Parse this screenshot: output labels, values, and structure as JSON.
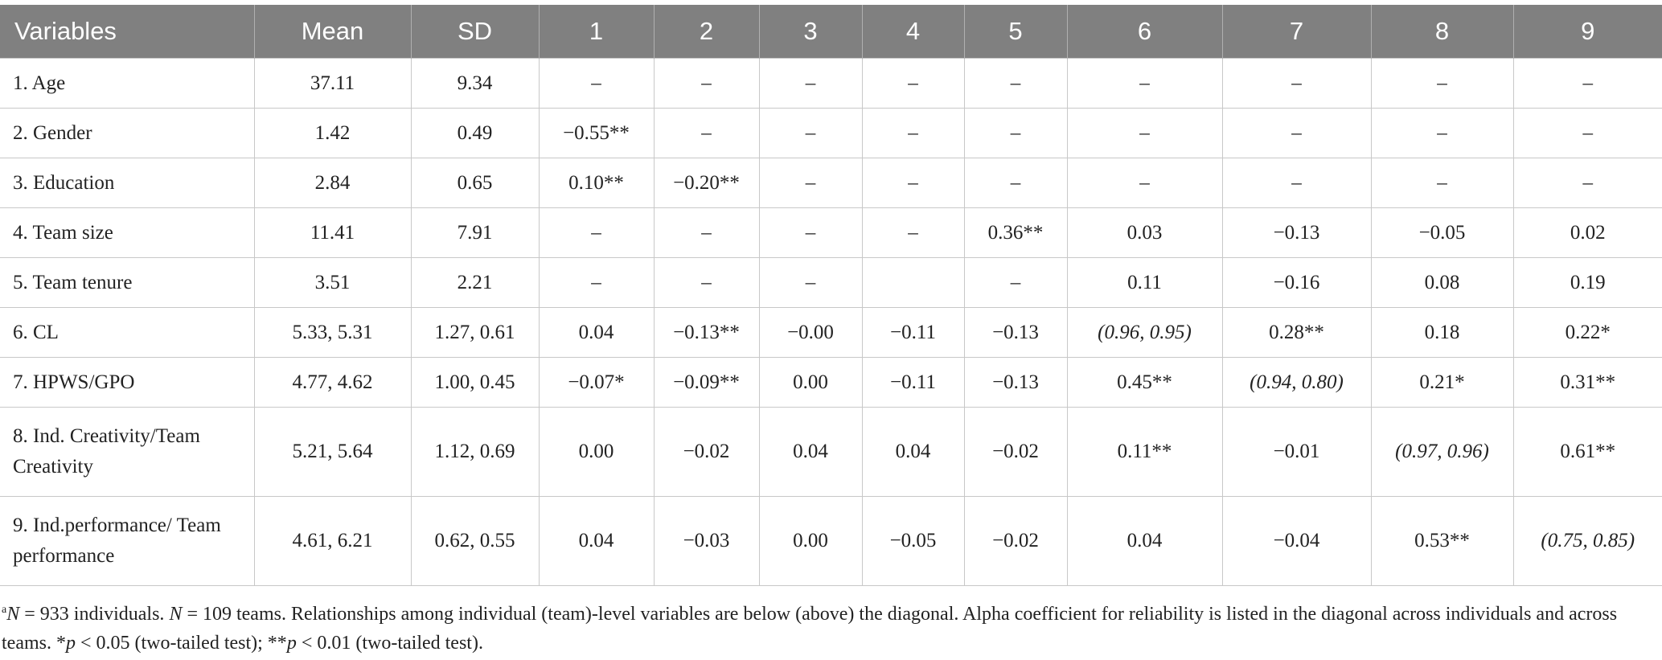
{
  "table": {
    "header": [
      "Variables",
      "Mean",
      "SD",
      "1",
      "2",
      "3",
      "4",
      "5",
      "6",
      "7",
      "8",
      "9"
    ],
    "rows": [
      [
        "1. Age",
        "37.11",
        "9.34",
        "–",
        "–",
        "–",
        "–",
        "–",
        "–",
        "–",
        "–",
        "–"
      ],
      [
        "2. Gender",
        "1.42",
        "0.49",
        "−0.55**",
        "–",
        "–",
        "–",
        "–",
        "–",
        "–",
        "–",
        "–"
      ],
      [
        "3. Education",
        "2.84",
        "0.65",
        "0.10**",
        "−0.20**",
        "–",
        "–",
        "–",
        "–",
        "–",
        "–",
        "–"
      ],
      [
        "4. Team size",
        "11.41",
        "7.91",
        "–",
        "–",
        "–",
        "–",
        "0.36**",
        "0.03",
        "−0.13",
        "−0.05",
        "0.02"
      ],
      [
        "5. Team tenure",
        "3.51",
        "2.21",
        "–",
        "–",
        "–",
        null,
        "–",
        "0.11",
        "−0.16",
        "0.08",
        "0.19"
      ],
      [
        "6. CL",
        "5.33, 5.31",
        "1.27, 0.61",
        "0.04",
        "−0.13**",
        "−0.00",
        "−0.11",
        "−0.13",
        "(0.96, 0.95)",
        "0.28**",
        "0.18",
        "0.22*"
      ],
      [
        "7. HPWS/GPO",
        "4.77, 4.62",
        "1.00, 0.45",
        "−0.07*",
        "−0.09**",
        "0.00",
        "−0.11",
        "−0.13",
        "0.45**",
        "(0.94, 0.80)",
        "0.21*",
        "0.31**"
      ],
      [
        "8. Ind. Creativity/Team Creativity",
        "5.21, 5.64",
        "1.12, 0.69",
        "0.00",
        "−0.02",
        "0.04",
        "0.04",
        "−0.02",
        "0.11**",
        "−0.01",
        "(0.97, 0.96)",
        "0.61**"
      ],
      [
        "9. Ind.performance/ Team performance",
        "4.61, 6.21",
        "0.62, 0.55",
        "0.04",
        "−0.03",
        "0.00",
        "−0.05",
        "−0.02",
        "0.04",
        "−0.04",
        "0.53**",
        "(0.75, 0.85)"
      ]
    ]
  },
  "footnote": [
    "a",
    "N",
    " = 933 individuals. ",
    "N",
    " = 109 teams. Relationships among individual (team)-level variables are below (above) the diagonal. Alpha coefficient for reliability is listed in the diagonal across individuals and across teams. *",
    "p",
    " < 0.05 (two-tailed test); **",
    "p",
    " < 0.01 (two-tailed test)."
  ]
}
